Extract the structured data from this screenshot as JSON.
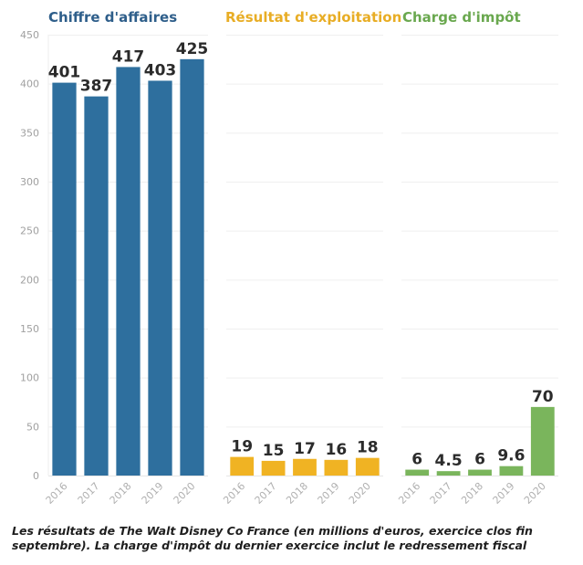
{
  "chart_data": [
    {
      "type": "bar",
      "title": "Chiffre d'affaires",
      "color": "#2e6f9e",
      "title_color": "#2e5e8a",
      "categories": [
        "2016",
        "2017",
        "2018",
        "2019",
        "2020"
      ],
      "values": [
        401,
        387,
        417,
        403,
        425
      ],
      "labels": [
        "401",
        "387",
        "417",
        "403",
        "425"
      ],
      "xlabel": "",
      "ylabel": "",
      "ylim": [
        0,
        450
      ],
      "yticks": [
        0,
        50,
        100,
        150,
        200,
        250,
        300,
        350,
        400,
        450
      ],
      "grid": true
    },
    {
      "type": "bar",
      "title": "Résultat d'exploitation",
      "color": "#f0b323",
      "title_color": "#e8ad25",
      "categories": [
        "2016",
        "2017",
        "2018",
        "2019",
        "2020"
      ],
      "values": [
        19,
        15,
        17,
        16,
        18
      ],
      "labels": [
        "19",
        "15",
        "17",
        "16",
        "18"
      ],
      "xlabel": "",
      "ylabel": "",
      "ylim": [
        0,
        450
      ],
      "grid": true
    },
    {
      "type": "bar",
      "title": "Charge d'impôt",
      "color": "#7ab55c",
      "title_color": "#6aa84f",
      "categories": [
        "2016",
        "2017",
        "2018",
        "2019",
        "2020"
      ],
      "values": [
        6,
        4.5,
        6,
        9.6,
        70
      ],
      "labels": [
        "6",
        "4.5",
        "6",
        "9.6",
        "70"
      ],
      "xlabel": "",
      "ylabel": "",
      "ylim": [
        0,
        450
      ],
      "grid": true
    }
  ],
  "caption": {
    "line1": "Les résultats de The Walt Disney Co France (en millions d'euros, exercice clos fin",
    "line2": "septembre). La charge d'impôt du dernier exercice inclut le redressement fiscal"
  }
}
